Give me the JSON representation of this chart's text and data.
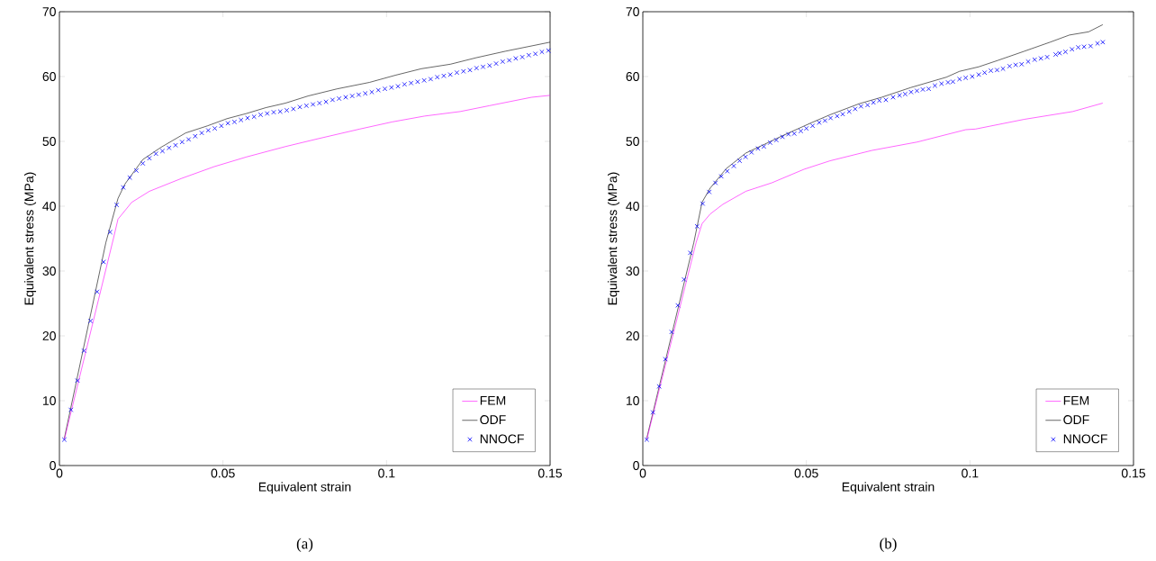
{
  "chart_data": [
    {
      "type": "line",
      "xlabel": "Equivalent strain",
      "ylabel": "Equivalent stress (MPa)",
      "xlim": [
        0,
        0.15
      ],
      "ylim": [
        0,
        70
      ],
      "xticks": [
        0,
        0.05,
        0.1,
        0.15
      ],
      "yticks": [
        0,
        10,
        20,
        30,
        40,
        50,
        60,
        70
      ],
      "legend": "bottom right",
      "annotations": [
        "(a)"
      ],
      "series": [
        {
          "name": "FEM",
          "type": "line",
          "color": "#ff00ff",
          "x": [
            0.0015,
            0.0165,
            0.0179,
            0.0221,
            0.0275,
            0.0374,
            0.0473,
            0.0572,
            0.0691,
            0.079,
            0.0918,
            0.1017,
            0.1116,
            0.1225,
            0.1314,
            0.1443,
            0.15
          ],
          "values": [
            4.0,
            35.0,
            38.0,
            40.6,
            42.3,
            44.3,
            46.1,
            47.6,
            49.2,
            50.4,
            51.9,
            53.0,
            53.9,
            54.6,
            55.5,
            56.8,
            57.1
          ]
        },
        {
          "name": "ODF",
          "type": "line",
          "color": "#000000",
          "x": [
            0.0015,
            0.0142,
            0.0179,
            0.02,
            0.0255,
            0.0311,
            0.0386,
            0.0453,
            0.0512,
            0.0572,
            0.0631,
            0.0691,
            0.076,
            0.0849,
            0.0948,
            0.1027,
            0.1106,
            0.1195,
            0.1274,
            0.1363,
            0.15
          ],
          "values": [
            4.2,
            34.4,
            41.2,
            43.4,
            47.2,
            49.1,
            51.3,
            52.4,
            53.5,
            54.3,
            55.2,
            55.9,
            57.0,
            58.1,
            59.1,
            60.2,
            61.2,
            61.9,
            62.9,
            63.9,
            65.3
          ]
        },
        {
          "name": "NNOCF",
          "type": "scatter",
          "color": "#0000ff",
          "marker": "cross",
          "x": [
            0.0015,
            0.0035,
            0.0055,
            0.0075,
            0.0095,
            0.0115,
            0.0135,
            0.0155,
            0.0175,
            0.0195,
            0.0215,
            0.0235,
            0.0255,
            0.0275,
            0.0295,
            0.0315,
            0.0335,
            0.0355,
            0.0375,
            0.0395,
            0.0415,
            0.0435,
            0.0455,
            0.0475,
            0.0495,
            0.0515,
            0.0535,
            0.0555,
            0.0575,
            0.0595,
            0.0615,
            0.0635,
            0.0655,
            0.0675,
            0.0695,
            0.0715,
            0.0735,
            0.0755,
            0.0775,
            0.0795,
            0.0815,
            0.0835,
            0.0855,
            0.0875,
            0.0895,
            0.0915,
            0.0935,
            0.0955,
            0.0975,
            0.0995,
            0.1015,
            0.1035,
            0.1055,
            0.1075,
            0.1095,
            0.1115,
            0.1135,
            0.1155,
            0.1175,
            0.1195,
            0.1215,
            0.1235,
            0.1255,
            0.1275,
            0.1295,
            0.1315,
            0.1335,
            0.1355,
            0.1375,
            0.1395,
            0.1415,
            0.1435,
            0.1455,
            0.1475,
            0.1495
          ],
          "values": [
            4.0,
            8.6,
            13.1,
            17.7,
            22.3,
            26.8,
            31.4,
            36.0,
            40.2,
            42.9,
            44.4,
            45.5,
            46.6,
            47.4,
            48.1,
            48.5,
            49.0,
            49.4,
            49.9,
            50.3,
            50.8,
            51.3,
            51.7,
            52.0,
            52.4,
            52.8,
            53.0,
            53.3,
            53.6,
            53.8,
            54.1,
            54.3,
            54.5,
            54.6,
            54.8,
            55.0,
            55.3,
            55.5,
            55.7,
            55.9,
            56.1,
            56.4,
            56.6,
            56.8,
            57.0,
            57.2,
            57.4,
            57.6,
            57.9,
            58.1,
            58.3,
            58.5,
            58.8,
            59.0,
            59.2,
            59.4,
            59.6,
            59.9,
            60.1,
            60.3,
            60.6,
            60.8,
            61.0,
            61.3,
            61.5,
            61.7,
            62.0,
            62.3,
            62.5,
            62.8,
            63.0,
            63.3,
            63.5,
            63.8,
            64.0
          ]
        }
      ]
    },
    {
      "type": "line",
      "xlabel": "Equivalent strain",
      "ylabel": "Equivalent stress (MPa)",
      "xlim": [
        0,
        0.15
      ],
      "ylim": [
        0,
        70
      ],
      "xticks": [
        0,
        0.05,
        0.1,
        0.15
      ],
      "yticks": [
        0,
        10,
        20,
        30,
        40,
        50,
        60,
        70
      ],
      "legend": "bottom right",
      "annotations": [
        "(b)"
      ],
      "series": [
        {
          "name": "FEM",
          "type": "line",
          "color": "#ff00ff",
          "x": [
            0.0012,
            0.0163,
            0.0181,
            0.0206,
            0.0245,
            0.0315,
            0.0394,
            0.0493,
            0.0572,
            0.07,
            0.0839,
            0.0987,
            0.1017,
            0.1166,
            0.1314,
            0.1406
          ],
          "values": [
            4.0,
            34.4,
            37.3,
            38.8,
            40.3,
            42.3,
            43.6,
            45.7,
            47.0,
            48.6,
            49.9,
            51.8,
            51.9,
            53.4,
            54.6,
            55.9
          ]
        },
        {
          "name": "ODF",
          "type": "line",
          "color": "#000000",
          "x": [
            0.0012,
            0.0156,
            0.0181,
            0.0206,
            0.0255,
            0.0315,
            0.0374,
            0.0424,
            0.0512,
            0.0572,
            0.0661,
            0.073,
            0.0819,
            0.0928,
            0.0968,
            0.1027,
            0.1086,
            0.1166,
            0.1245,
            0.1304,
            0.1363,
            0.1406
          ],
          "values": [
            4.2,
            34.4,
            40.6,
            42.8,
            45.8,
            48.2,
            49.6,
            50.8,
            52.8,
            54.1,
            55.8,
            56.8,
            58.3,
            59.9,
            60.8,
            61.5,
            62.5,
            63.9,
            65.3,
            66.4,
            66.9,
            68.0
          ]
        },
        {
          "name": "NNOCF",
          "type": "scatter",
          "color": "#0000ff",
          "marker": "cross",
          "x": [
            0.0012,
            0.0031,
            0.005,
            0.0069,
            0.0088,
            0.0107,
            0.0126,
            0.0145,
            0.0166,
            0.0183,
            0.0203,
            0.0222,
            0.024,
            0.0258,
            0.0278,
            0.0296,
            0.0314,
            0.0332,
            0.0352,
            0.037,
            0.0389,
            0.0408,
            0.0427,
            0.0445,
            0.0463,
            0.0483,
            0.05,
            0.0519,
            0.0539,
            0.0557,
            0.0574,
            0.0594,
            0.0611,
            0.0631,
            0.0649,
            0.0667,
            0.0687,
            0.0705,
            0.0723,
            0.0743,
            0.0765,
            0.0785,
            0.0802,
            0.082,
            0.0838,
            0.0856,
            0.0874,
            0.0893,
            0.0913,
            0.0933,
            0.0948,
            0.0968,
            0.0987,
            0.1007,
            0.1027,
            0.1045,
            0.1064,
            0.1083,
            0.1101,
            0.1121,
            0.114,
            0.1158,
            0.1178,
            0.1198,
            0.1217,
            0.1236,
            0.1262,
            0.1274,
            0.1292,
            0.1312,
            0.1331,
            0.1349,
            0.1369,
            0.139,
            0.1406
          ],
          "values": [
            4.0,
            8.2,
            12.2,
            16.4,
            20.6,
            24.7,
            28.7,
            32.8,
            36.9,
            40.4,
            42.2,
            43.6,
            44.6,
            45.4,
            46.2,
            47.0,
            47.6,
            48.3,
            48.9,
            49.2,
            49.8,
            50.2,
            50.7,
            51.1,
            51.2,
            51.6,
            52.0,
            52.4,
            52.9,
            53.2,
            53.6,
            53.9,
            54.2,
            54.6,
            55.0,
            55.4,
            55.6,
            56.0,
            56.3,
            56.4,
            56.8,
            57.1,
            57.3,
            57.6,
            57.8,
            58.0,
            58.1,
            58.6,
            58.9,
            59.1,
            59.2,
            59.6,
            59.8,
            60.0,
            60.3,
            60.6,
            60.9,
            61.0,
            61.2,
            61.6,
            61.8,
            61.9,
            62.3,
            62.6,
            62.8,
            63.0,
            63.4,
            63.6,
            63.8,
            64.2,
            64.5,
            64.6,
            64.7,
            65.1,
            65.3
          ]
        }
      ]
    }
  ]
}
